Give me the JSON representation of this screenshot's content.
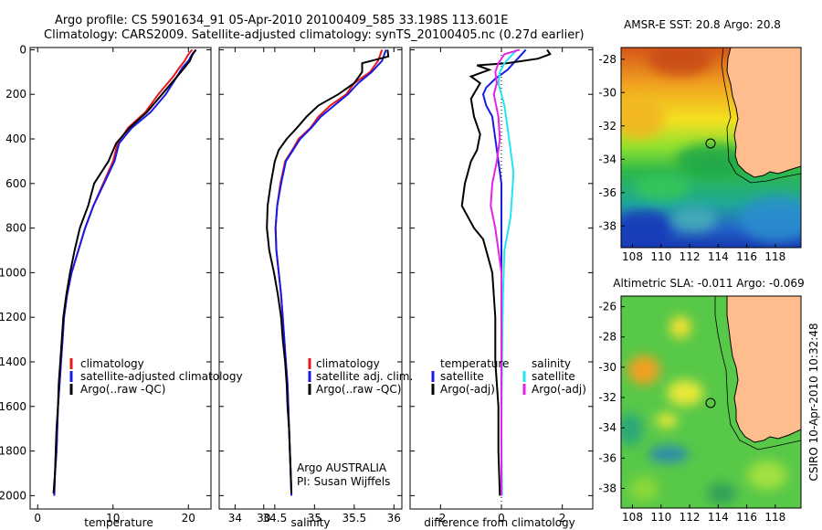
{
  "title_line1": "Argo profile: CS 5901634_91 05-Apr-2010 20100409_585 33.198S 113.601E",
  "title_line2": "Climatology: CARS2009. Satellite-adjusted climatology: synTS_20100405.nc (0.27d earlier)",
  "side_label": "CSIRO 10-Apr-2010 10:32:48",
  "colors": {
    "climatology": "#e8191c",
    "satellite": "#1a1ae6",
    "argo": "#000000",
    "satellite_sal": "#22e5ef",
    "argo_sal": "#e622e6"
  },
  "chart_data": [
    {
      "type": "line",
      "id": "temperature",
      "xlabel": "temperature",
      "xlim": [
        -1,
        23
      ],
      "ylim": [
        2060,
        -10
      ],
      "xticks": [
        "0",
        "10",
        "20",
        "30"
      ],
      "yticks": [
        "0",
        "200",
        "400",
        "600",
        "800",
        "1000",
        "1200",
        "1400",
        "1600",
        "1800",
        "2000"
      ],
      "legend": [
        "climatology",
        "satellite-adjusted climatology",
        "Argo(..raw -QC)"
      ],
      "series": [
        {
          "name": "climatology",
          "color": "climatology",
          "points": [
            [
              20.5,
              0
            ],
            [
              20,
              20
            ],
            [
              19.5,
              50
            ],
            [
              18.8,
              80
            ],
            [
              18,
              120
            ],
            [
              16,
              200
            ],
            [
              14.3,
              280
            ],
            [
              12,
              350
            ],
            [
              10.6,
              420
            ],
            [
              10,
              500
            ],
            [
              8.7,
              600
            ],
            [
              7.4,
              700
            ],
            [
              6.3,
              800
            ],
            [
              5.4,
              900
            ],
            [
              4.5,
              1000
            ],
            [
              3.9,
              1100
            ],
            [
              3.5,
              1200
            ],
            [
              3.3,
              1300
            ],
            [
              3.1,
              1400
            ],
            [
              2.9,
              1500
            ],
            [
              2.7,
              1600
            ],
            [
              2.6,
              1700
            ],
            [
              2.5,
              1800
            ],
            [
              2.3,
              1900
            ],
            [
              2.2,
              2000
            ]
          ]
        },
        {
          "name": "satellite-adjusted climatology",
          "color": "satellite",
          "points": [
            [
              21,
              0
            ],
            [
              20.5,
              20
            ],
            [
              20,
              50
            ],
            [
              19.2,
              80
            ],
            [
              18.5,
              120
            ],
            [
              17,
              200
            ],
            [
              15,
              280
            ],
            [
              12.5,
              350
            ],
            [
              10.8,
              420
            ],
            [
              10.2,
              500
            ],
            [
              8.8,
              600
            ],
            [
              7.4,
              700
            ],
            [
              6.3,
              800
            ],
            [
              5.4,
              900
            ],
            [
              4.5,
              1000
            ],
            [
              3.9,
              1100
            ],
            [
              3.5,
              1200
            ],
            [
              3.3,
              1300
            ],
            [
              3.1,
              1400
            ],
            [
              2.9,
              1500
            ],
            [
              2.7,
              1600
            ],
            [
              2.6,
              1700
            ],
            [
              2.5,
              1800
            ],
            [
              2.3,
              1900
            ],
            [
              2.2,
              2000
            ]
          ]
        },
        {
          "name": "Argo(..raw -QC)",
          "color": "argo",
          "points": [
            [
              21,
              0
            ],
            [
              20.5,
              25
            ],
            [
              20.2,
              50
            ],
            [
              19.5,
              80
            ],
            [
              18.5,
              120
            ],
            [
              16.5,
              200
            ],
            [
              14.5,
              280
            ],
            [
              12.2,
              350
            ],
            [
              10.4,
              420
            ],
            [
              9.4,
              500
            ],
            [
              7.5,
              600
            ],
            [
              6.7,
              700
            ],
            [
              5.6,
              800
            ],
            [
              4.9,
              900
            ],
            [
              4.3,
              1000
            ],
            [
              3.8,
              1100
            ],
            [
              3.4,
              1200
            ],
            [
              3.2,
              1300
            ],
            [
              3,
              1400
            ],
            [
              2.8,
              1500
            ],
            [
              2.7,
              1600
            ],
            [
              2.5,
              1700
            ],
            [
              2.4,
              1800
            ],
            [
              2.3,
              1900
            ],
            [
              2.1,
              1990
            ]
          ]
        }
      ]
    },
    {
      "type": "line",
      "id": "salinity",
      "xlabel": "salinity",
      "xlim": [
        33.8,
        36.1
      ],
      "ylim": [
        2060,
        -10
      ],
      "xticks": [
        "34",
        "34.5",
        "35",
        "35.5",
        "36"
      ],
      "legend": [
        "climatology",
        "satellite adj. clim.",
        "Argo(..raw -QC)"
      ],
      "annotation": [
        "Argo AUSTRALIA",
        "PI: Susan Wijffels"
      ],
      "series": [
        {
          "name": "climatology",
          "color": "climatology",
          "points": [
            [
              35.85,
              0
            ],
            [
              35.8,
              50
            ],
            [
              35.7,
              100
            ],
            [
              35.5,
              150
            ],
            [
              35.4,
              200
            ],
            [
              35.2,
              250
            ],
            [
              35.05,
              300
            ],
            [
              34.95,
              350
            ],
            [
              34.8,
              400
            ],
            [
              34.72,
              450
            ],
            [
              34.63,
              500
            ],
            [
              34.57,
              600
            ],
            [
              34.53,
              700
            ],
            [
              34.51,
              800
            ],
            [
              34.52,
              900
            ],
            [
              34.55,
              1000
            ],
            [
              34.58,
              1100
            ],
            [
              34.6,
              1200
            ],
            [
              34.62,
              1300
            ],
            [
              34.64,
              1400
            ],
            [
              34.66,
              1500
            ],
            [
              34.67,
              1600
            ],
            [
              34.68,
              1700
            ],
            [
              34.69,
              1800
            ],
            [
              34.7,
              1900
            ],
            [
              34.71,
              2000
            ]
          ]
        },
        {
          "name": "satellite adj. clim.",
          "color": "satellite",
          "points": [
            [
              35.9,
              0
            ],
            [
              35.85,
              50
            ],
            [
              35.72,
              100
            ],
            [
              35.55,
              150
            ],
            [
              35.42,
              200
            ],
            [
              35.25,
              250
            ],
            [
              35.08,
              300
            ],
            [
              34.96,
              350
            ],
            [
              34.82,
              400
            ],
            [
              34.73,
              450
            ],
            [
              34.64,
              500
            ],
            [
              34.58,
              600
            ],
            [
              34.53,
              700
            ],
            [
              34.51,
              800
            ],
            [
              34.52,
              900
            ],
            [
              34.55,
              1000
            ],
            [
              34.58,
              1100
            ],
            [
              34.6,
              1200
            ],
            [
              34.62,
              1300
            ],
            [
              34.64,
              1400
            ],
            [
              34.66,
              1500
            ],
            [
              34.67,
              1600
            ],
            [
              34.68,
              1700
            ],
            [
              34.69,
              1800
            ],
            [
              34.7,
              1900
            ],
            [
              34.71,
              2000
            ]
          ]
        },
        {
          "name": "Argo(..raw -QC)",
          "color": "argo",
          "points": [
            [
              35.92,
              0
            ],
            [
              35.93,
              30
            ],
            [
              35.6,
              60
            ],
            [
              35.6,
              100
            ],
            [
              35.5,
              150
            ],
            [
              35.3,
              200
            ],
            [
              35.05,
              250
            ],
            [
              34.9,
              300
            ],
            [
              34.78,
              350
            ],
            [
              34.65,
              400
            ],
            [
              34.55,
              450
            ],
            [
              34.5,
              500
            ],
            [
              34.45,
              600
            ],
            [
              34.41,
              700
            ],
            [
              34.4,
              800
            ],
            [
              34.43,
              900
            ],
            [
              34.49,
              1000
            ],
            [
              34.54,
              1100
            ],
            [
              34.58,
              1200
            ],
            [
              34.6,
              1300
            ],
            [
              34.63,
              1400
            ],
            [
              34.65,
              1500
            ],
            [
              34.66,
              1600
            ],
            [
              34.68,
              1700
            ],
            [
              34.69,
              1800
            ],
            [
              34.7,
              1900
            ],
            [
              34.71,
              1990
            ]
          ]
        }
      ]
    },
    {
      "type": "line",
      "id": "difference",
      "xlabel": "difference from climatology",
      "xlim": [
        -3,
        3
      ],
      "ylim": [
        2060,
        -10
      ],
      "xticks": [
        "-2",
        "0",
        "2"
      ],
      "legend_temperature_title": "temperature",
      "legend_salinity_title": "salinity",
      "legend_temperature": [
        "satellite",
        "Argo(-adj)"
      ],
      "legend_salinity": [
        "satellite",
        "Argo(-adj)"
      ],
      "series": [
        {
          "name": "temperature satellite",
          "color": "satellite",
          "points": [
            [
              0.8,
              0
            ],
            [
              0.6,
              30
            ],
            [
              0.4,
              60
            ],
            [
              0.2,
              90
            ],
            [
              -0.2,
              130
            ],
            [
              -0.5,
              170
            ],
            [
              -0.6,
              200
            ],
            [
              -0.5,
              250
            ],
            [
              -0.3,
              300
            ],
            [
              -0.2,
              400
            ],
            [
              -0.1,
              500
            ],
            [
              0,
              600
            ],
            [
              0,
              1000
            ],
            [
              0,
              1500
            ],
            [
              0,
              2000
            ]
          ]
        },
        {
          "name": "temperature Argo(-adj)",
          "color": "argo",
          "points": [
            [
              1.5,
              0
            ],
            [
              1.6,
              20
            ],
            [
              1.2,
              40
            ],
            [
              0.2,
              60
            ],
            [
              -0.8,
              70
            ],
            [
              -0.4,
              90
            ],
            [
              -1,
              120
            ],
            [
              -0.7,
              150
            ],
            [
              -1,
              220
            ],
            [
              -0.9,
              300
            ],
            [
              -0.7,
              380
            ],
            [
              -0.8,
              450
            ],
            [
              -1,
              500
            ],
            [
              -1.2,
              600
            ],
            [
              -1.3,
              700
            ],
            [
              -0.9,
              800
            ],
            [
              -0.6,
              850
            ],
            [
              -0.4,
              950
            ],
            [
              -0.3,
              1000
            ],
            [
              -0.2,
              1200
            ],
            [
              -0.2,
              1400
            ],
            [
              -0.1,
              1600
            ],
            [
              -0.1,
              1800
            ],
            [
              -0.05,
              2000
            ]
          ]
        },
        {
          "name": "salinity satellite",
          "color": "satellite_sal",
          "points": [
            [
              0.5,
              0
            ],
            [
              0.3,
              30
            ],
            [
              0.1,
              60
            ],
            [
              -0.05,
              100
            ],
            [
              -0.1,
              150
            ],
            [
              0.1,
              250
            ],
            [
              0.2,
              350
            ],
            [
              0.3,
              450
            ],
            [
              0.4,
              550
            ],
            [
              0.35,
              650
            ],
            [
              0.3,
              750
            ],
            [
              0.1,
              900
            ],
            [
              0.05,
              1100
            ],
            [
              0.02,
              1400
            ],
            [
              0,
              1700
            ],
            [
              0.02,
              2000
            ]
          ]
        },
        {
          "name": "salinity Argo(-adj)",
          "color": "argo_sal",
          "points": [
            [
              0.6,
              0
            ],
            [
              0.1,
              20
            ],
            [
              -0.1,
              60
            ],
            [
              -0.2,
              100
            ],
            [
              -0.15,
              150
            ],
            [
              -0.25,
              200
            ],
            [
              -0.1,
              300
            ],
            [
              -0.05,
              400
            ],
            [
              -0.15,
              500
            ],
            [
              -0.3,
              600
            ],
            [
              -0.35,
              700
            ],
            [
              -0.2,
              800
            ],
            [
              -0.1,
              900
            ],
            [
              0,
              1000
            ],
            [
              0,
              1200
            ],
            [
              0,
              1500
            ],
            [
              0,
              1800
            ],
            [
              0,
              2000
            ]
          ]
        }
      ]
    },
    {
      "type": "heatmap",
      "id": "sst_map",
      "title": "AMSR-E SST: 20.8 Argo: 20.8",
      "xlim": [
        107.2,
        119.8
      ],
      "ylim": [
        -39.3,
        -27.3
      ],
      "xticks": [
        "108",
        "110",
        "112",
        "114",
        "116",
        "118"
      ],
      "yticks": [
        "-28",
        "-30",
        "-32",
        "-34",
        "-36",
        "-38"
      ],
      "argo_marker": [
        113.6,
        -33.2
      ]
    },
    {
      "type": "heatmap",
      "id": "sla_map",
      "title": "Altimetric SLA: -0.011 Argo: -0.069",
      "xlim": [
        107.2,
        119.8
      ],
      "ylim": [
        -39.3,
        -25.3
      ],
      "xticks": [
        "108",
        "110",
        "112",
        "114",
        "116",
        "118"
      ],
      "yticks": [
        "-26",
        "-28",
        "-30",
        "-32",
        "-34",
        "-36",
        "-38"
      ],
      "argo_marker": [
        113.6,
        -33.2
      ]
    }
  ]
}
